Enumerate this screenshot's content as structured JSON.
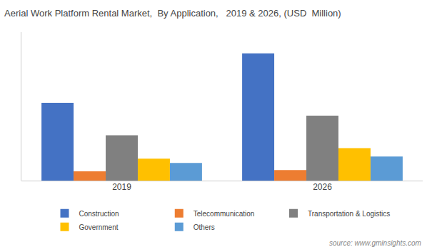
{
  "chart_data": {
    "type": "bar",
    "title": "Aerial Work Platform Rental Market,  By Application,   2019 & 2026, (USD  Million)",
    "categories": [
      "2019",
      "2026"
    ],
    "series": [
      {
        "name": "Construction",
        "color": "#4472c4",
        "values": [
          5.5,
          9.0
        ]
      },
      {
        "name": "Telecommunication",
        "color": "#ed7d31",
        "values": [
          0.65,
          0.75
        ]
      },
      {
        "name": "Transportation & Logistics",
        "color": "#808080",
        "values": [
          3.2,
          4.6
        ]
      },
      {
        "name": "Government",
        "color": "#ffc000",
        "values": [
          1.55,
          2.3
        ]
      },
      {
        "name": "Others",
        "color": "#5b9bd5",
        "values": [
          1.25,
          1.7
        ]
      }
    ],
    "ylim": [
      0,
      10.5
    ],
    "grid": false,
    "legend": "bottom",
    "tick_labels": "x",
    "annotations": [
      "source: www.gminsights.com"
    ]
  }
}
